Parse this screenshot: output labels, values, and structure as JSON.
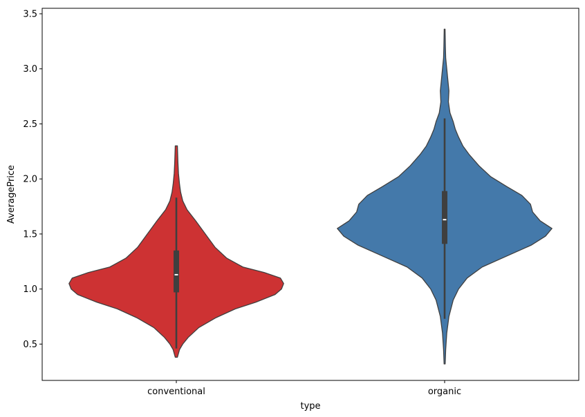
{
  "chart_data": {
    "type": "violin",
    "title": "",
    "xlabel": "type",
    "ylabel": "AveragePrice",
    "categories": [
      "conventional",
      "organic"
    ],
    "ylim": [
      0.17,
      3.55
    ],
    "yticks": [
      0.5,
      1.0,
      1.5,
      2.0,
      2.5,
      3.0,
      3.5
    ],
    "ytick_labels": [
      "0.5",
      "1.0",
      "1.5",
      "2.0",
      "2.5",
      "3.0",
      "3.5"
    ],
    "grid": false,
    "legend": "none",
    "series": [
      {
        "category": "conventional",
        "color": "#cd3233",
        "min": 0.38,
        "whisker_low": 0.46,
        "q1": 0.97,
        "median": 1.13,
        "q3": 1.35,
        "whisker_high": 1.83,
        "max": 2.3,
        "density": [
          [
            0.38,
            0.01
          ],
          [
            0.45,
            0.03
          ],
          [
            0.5,
            0.06
          ],
          [
            0.56,
            0.11
          ],
          [
            0.65,
            0.21
          ],
          [
            0.74,
            0.37
          ],
          [
            0.82,
            0.55
          ],
          [
            0.88,
            0.74
          ],
          [
            0.95,
            0.92
          ],
          [
            1.0,
            0.98
          ],
          [
            1.05,
            1.0
          ],
          [
            1.1,
            0.97
          ],
          [
            1.15,
            0.82
          ],
          [
            1.2,
            0.62
          ],
          [
            1.28,
            0.47
          ],
          [
            1.38,
            0.36
          ],
          [
            1.5,
            0.27
          ],
          [
            1.62,
            0.18
          ],
          [
            1.72,
            0.1
          ],
          [
            1.8,
            0.06
          ],
          [
            1.88,
            0.04
          ],
          [
            1.95,
            0.03
          ],
          [
            2.05,
            0.02
          ],
          [
            2.15,
            0.015
          ],
          [
            2.3,
            0.01
          ]
        ]
      },
      {
        "category": "organic",
        "color": "#4479aa",
        "min": 0.32,
        "whisker_low": 0.73,
        "q1": 1.41,
        "median": 1.63,
        "q3": 1.89,
        "whisker_high": 2.55,
        "max": 3.36,
        "density": [
          [
            0.32,
            0.005
          ],
          [
            0.45,
            0.01
          ],
          [
            0.6,
            0.02
          ],
          [
            0.75,
            0.04
          ],
          [
            0.9,
            0.08
          ],
          [
            1.0,
            0.13
          ],
          [
            1.1,
            0.21
          ],
          [
            1.2,
            0.35
          ],
          [
            1.3,
            0.58
          ],
          [
            1.4,
            0.81
          ],
          [
            1.48,
            0.94
          ],
          [
            1.55,
            1.0
          ],
          [
            1.62,
            0.89
          ],
          [
            1.7,
            0.82
          ],
          [
            1.77,
            0.8
          ],
          [
            1.85,
            0.72
          ],
          [
            1.93,
            0.58
          ],
          [
            2.02,
            0.43
          ],
          [
            2.12,
            0.32
          ],
          [
            2.22,
            0.23
          ],
          [
            2.3,
            0.17
          ],
          [
            2.38,
            0.13
          ],
          [
            2.45,
            0.1
          ],
          [
            2.52,
            0.08
          ],
          [
            2.6,
            0.05
          ],
          [
            2.7,
            0.035
          ],
          [
            2.8,
            0.04
          ],
          [
            2.9,
            0.03
          ],
          [
            3.0,
            0.02
          ],
          [
            3.1,
            0.01
          ],
          [
            3.2,
            0.007
          ],
          [
            3.36,
            0.004
          ]
        ]
      }
    ]
  }
}
